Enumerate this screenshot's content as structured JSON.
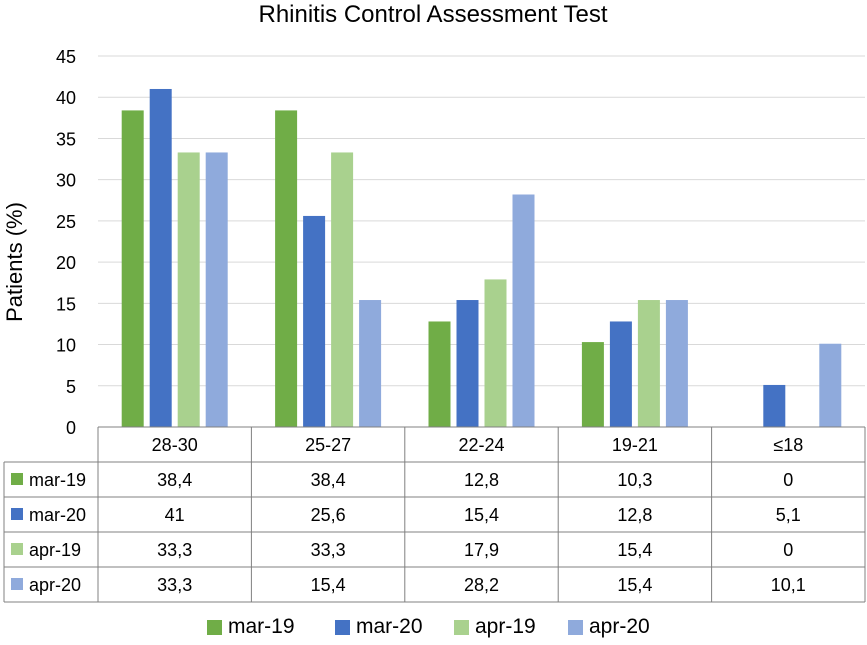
{
  "chart_data": {
    "type": "bar",
    "title": "Rhinitis Control Assessment Test",
    "xlabel": "",
    "ylabel": "Patients (%)",
    "ylim": [
      0,
      45
    ],
    "yticks": [
      "0",
      "5",
      "10",
      "15",
      "20",
      "25",
      "30",
      "35",
      "40",
      "45"
    ],
    "grid": true,
    "legend_position": "bottom",
    "categories": [
      "28-30",
      "25-27",
      "22-24",
      "19-21",
      "≤18"
    ],
    "series": [
      {
        "name": "mar-19",
        "color": "#70AD47",
        "values": [
          38.4,
          38.4,
          12.8,
          10.3,
          0
        ],
        "labels": [
          "38,4",
          "38,4",
          "12,8",
          "10,3",
          "0"
        ]
      },
      {
        "name": "mar-20",
        "color": "#4472C4",
        "values": [
          41,
          25.6,
          15.4,
          12.8,
          5.1
        ],
        "labels": [
          "41",
          "25,6",
          "15,4",
          "12,8",
          "5,1"
        ]
      },
      {
        "name": "apr-19",
        "color": "#A9D18E",
        "values": [
          33.3,
          33.3,
          17.9,
          15.4,
          0
        ],
        "labels": [
          "33,3",
          "33,3",
          "17,9",
          "15,4",
          "0"
        ]
      },
      {
        "name": "apr-20",
        "color": "#8FAADC",
        "values": [
          33.3,
          15.4,
          28.2,
          15.4,
          10.1
        ],
        "labels": [
          "33,3",
          "15,4",
          "28,2",
          "15,4",
          "10,1"
        ]
      }
    ]
  }
}
